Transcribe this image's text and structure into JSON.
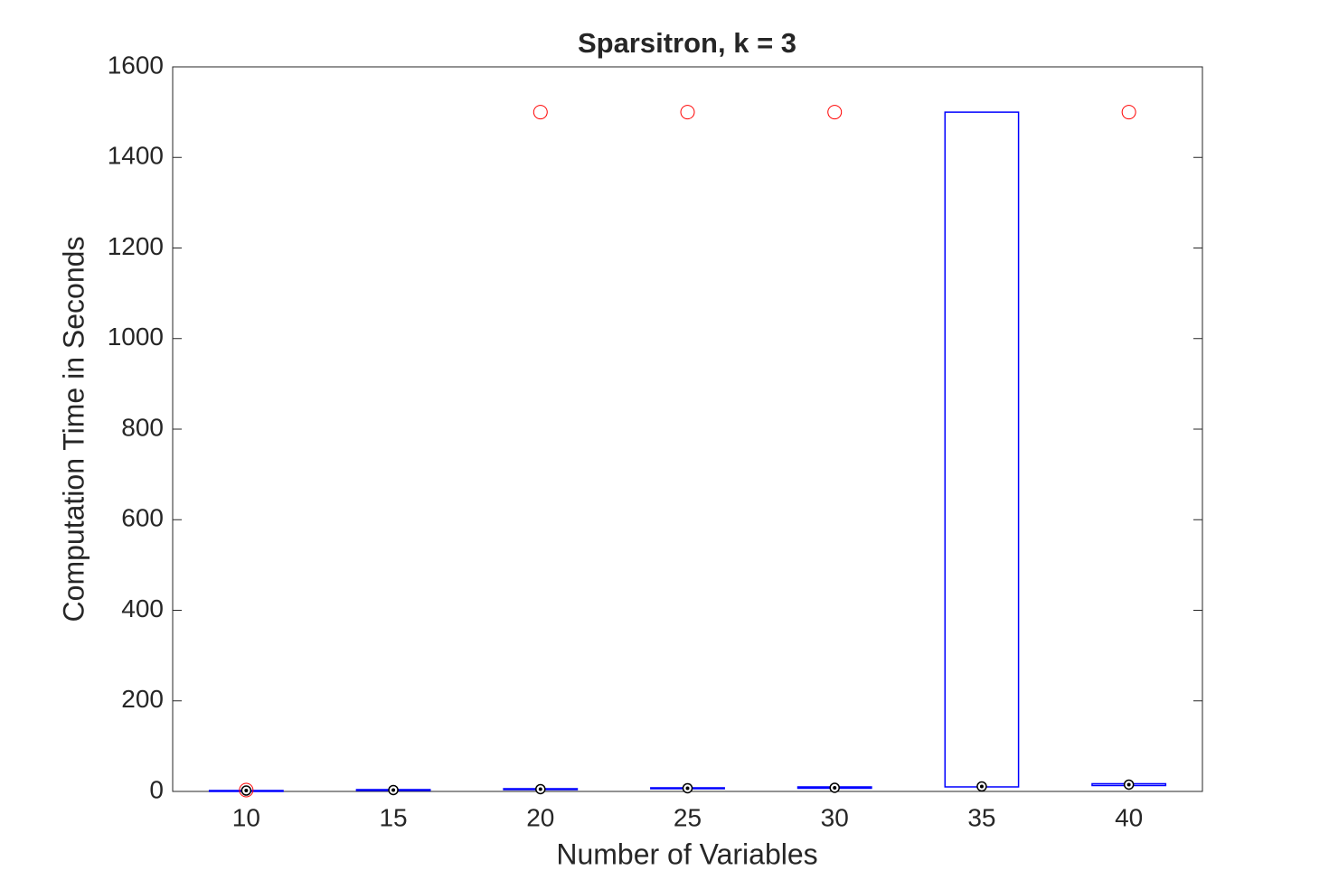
{
  "chart_data": {
    "type": "box",
    "title": "Sparsitron, k = 3",
    "x_label": "Number of Variables",
    "y_label": "Computation Time in Seconds",
    "categories": [
      "10",
      "15",
      "20",
      "25",
      "30",
      "35",
      "40"
    ],
    "boxes": [
      {
        "whisker_low": 1,
        "q1": 1,
        "median": 2,
        "q3": 2,
        "whisker_high": 2,
        "outliers": [
          3
        ]
      },
      {
        "whisker_low": 2,
        "q1": 2,
        "median": 3,
        "q3": 4,
        "whisker_high": 4,
        "outliers": []
      },
      {
        "whisker_low": 4,
        "q1": 4,
        "median": 5,
        "q3": 6,
        "whisker_high": 6,
        "outliers": [
          1500
        ]
      },
      {
        "whisker_low": 6,
        "q1": 6,
        "median": 7,
        "q3": 8,
        "whisker_high": 8,
        "outliers": [
          1500
        ]
      },
      {
        "whisker_low": 7,
        "q1": 7,
        "median": 8,
        "q3": 10,
        "whisker_high": 10,
        "outliers": [
          1500
        ]
      },
      {
        "whisker_low": 8,
        "q1": 10,
        "median": 11,
        "q3": 1500,
        "whisker_high": 1500,
        "outliers": []
      },
      {
        "whisker_low": 12,
        "q1": 13,
        "median": 15,
        "q3": 17,
        "whisker_high": 17,
        "outliers": [
          1500
        ]
      }
    ],
    "box_color": "#0000ff",
    "outlier_color": "#ff0000",
    "median_color": "#000000",
    "ylim": [
      0,
      1600
    ],
    "yticks": [
      0,
      200,
      400,
      600,
      800,
      1000,
      1200,
      1400,
      1600
    ],
    "grid": false
  }
}
